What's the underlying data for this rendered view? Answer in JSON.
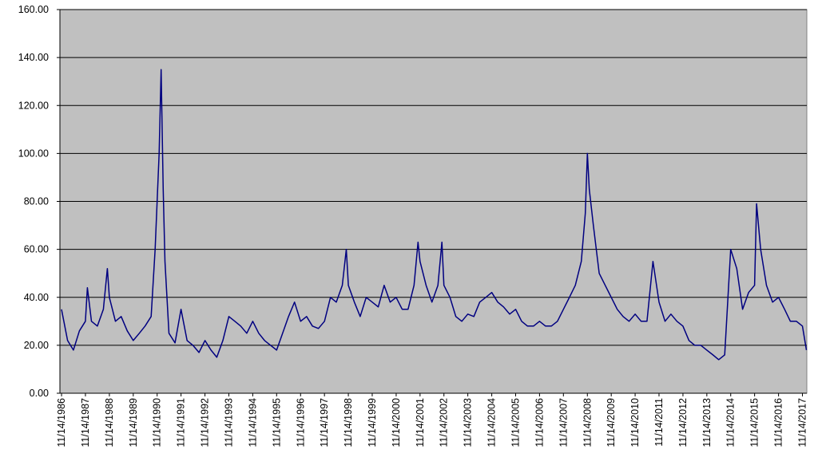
{
  "chart_data": {
    "type": "line",
    "x": [
      "1986-11-14",
      "1987-02-14",
      "1987-05-14",
      "1987-08-14",
      "1987-11-14",
      "1987-12-14",
      "1988-02-14",
      "1988-05-14",
      "1988-08-14",
      "1988-10-14",
      "1988-11-14",
      "1989-02-14",
      "1989-05-14",
      "1989-08-14",
      "1989-11-14",
      "1990-02-14",
      "1990-05-14",
      "1990-08-14",
      "1990-10-14",
      "1990-11-14",
      "1990-12-14",
      "1991-01-14",
      "1991-02-14",
      "1991-03-14",
      "1991-05-14",
      "1991-08-14",
      "1991-11-14",
      "1992-02-14",
      "1992-05-14",
      "1992-08-14",
      "1992-11-14",
      "1993-02-14",
      "1993-05-14",
      "1993-08-14",
      "1993-11-14",
      "1994-02-14",
      "1994-05-14",
      "1994-08-14",
      "1994-11-14",
      "1995-02-14",
      "1995-05-14",
      "1995-08-14",
      "1995-11-14",
      "1996-02-14",
      "1996-05-14",
      "1996-08-14",
      "1996-11-14",
      "1997-02-14",
      "1997-05-14",
      "1997-08-14",
      "1997-11-14",
      "1998-02-14",
      "1998-05-14",
      "1998-08-14",
      "1998-10-14",
      "1998-11-14",
      "1999-02-14",
      "1999-05-14",
      "1999-08-14",
      "1999-11-14",
      "2000-02-14",
      "2000-05-14",
      "2000-08-14",
      "2000-11-14",
      "2001-02-14",
      "2001-05-14",
      "2001-08-14",
      "2001-10-14",
      "2001-11-14",
      "2002-02-14",
      "2002-05-14",
      "2002-08-14",
      "2002-10-14",
      "2002-11-14",
      "2003-02-14",
      "2003-05-14",
      "2003-08-14",
      "2003-11-14",
      "2004-02-14",
      "2004-05-14",
      "2004-08-14",
      "2004-11-14",
      "2005-02-14",
      "2005-05-14",
      "2005-08-14",
      "2005-11-14",
      "2006-02-14",
      "2006-05-14",
      "2006-08-14",
      "2006-11-14",
      "2007-02-14",
      "2007-05-14",
      "2007-08-14",
      "2007-11-14",
      "2008-02-14",
      "2008-05-14",
      "2008-08-14",
      "2008-10-14",
      "2008-11-14",
      "2008-12-14",
      "2009-02-14",
      "2009-05-14",
      "2009-08-14",
      "2009-11-14",
      "2010-02-14",
      "2010-05-14",
      "2010-08-14",
      "2010-11-14",
      "2011-02-14",
      "2011-05-14",
      "2011-08-14",
      "2011-11-14",
      "2012-02-14",
      "2012-05-14",
      "2012-08-14",
      "2012-11-14",
      "2013-02-14",
      "2013-05-14",
      "2013-08-14",
      "2013-11-14",
      "2014-02-14",
      "2014-05-14",
      "2014-08-14",
      "2014-11-14",
      "2015-02-14",
      "2015-05-14",
      "2015-08-14",
      "2015-11-14",
      "2015-12-14",
      "2016-02-14",
      "2016-05-14",
      "2016-08-14",
      "2016-11-14",
      "2017-02-14",
      "2017-05-14",
      "2017-08-14",
      "2017-11-14",
      "2018-01-14"
    ],
    "series": [
      {
        "color": "#000080",
        "values": [
          35,
          22,
          18,
          26,
          30,
          44,
          30,
          28,
          35,
          52,
          40,
          30,
          32,
          26,
          22,
          25,
          28,
          32,
          60,
          80,
          100,
          135,
          85,
          55,
          25,
          21,
          35,
          22,
          20,
          17,
          22,
          18,
          15,
          22,
          32,
          30,
          28,
          25,
          30,
          25,
          22,
          20,
          18,
          25,
          32,
          38,
          30,
          32,
          28,
          27,
          30,
          40,
          38,
          45,
          60,
          45,
          38,
          32,
          40,
          38,
          36,
          45,
          38,
          40,
          35,
          35,
          45,
          63,
          55,
          45,
          38,
          45,
          63,
          45,
          40,
          32,
          30,
          33,
          32,
          38,
          40,
          42,
          38,
          36,
          33,
          35,
          30,
          28,
          28,
          30,
          28,
          28,
          30,
          35,
          40,
          45,
          55,
          75,
          100,
          85,
          70,
          50,
          45,
          40,
          35,
          32,
          30,
          33,
          30,
          30,
          55,
          38,
          30,
          33,
          30,
          28,
          22,
          20,
          20,
          18,
          16,
          14,
          16,
          60,
          52,
          35,
          42,
          45,
          79,
          60,
          45,
          38,
          40,
          35,
          30,
          30,
          28,
          18
        ]
      }
    ],
    "xlim": [
      "1986-10-20",
      "2018-01-20"
    ],
    "xticks": [
      {
        "value": "1986-11-14",
        "label": "11/14/1986"
      },
      {
        "value": "1987-11-14",
        "label": "11/14/1987"
      },
      {
        "value": "1988-11-14",
        "label": "11/14/1988"
      },
      {
        "value": "1989-11-14",
        "label": "11/14/1989"
      },
      {
        "value": "1990-11-14",
        "label": "11/14/1990"
      },
      {
        "value": "1991-11-14",
        "label": "11/14/1991"
      },
      {
        "value": "1992-11-14",
        "label": "11/14/1992"
      },
      {
        "value": "1993-11-14",
        "label": "11/14/1993"
      },
      {
        "value": "1994-11-14",
        "label": "11/14/1994"
      },
      {
        "value": "1995-11-14",
        "label": "11/14/1995"
      },
      {
        "value": "1996-11-14",
        "label": "11/14/1996"
      },
      {
        "value": "1997-11-14",
        "label": "11/14/1997"
      },
      {
        "value": "1998-11-14",
        "label": "11/14/1998"
      },
      {
        "value": "1999-11-14",
        "label": "11/14/1999"
      },
      {
        "value": "2000-11-14",
        "label": "11/14/2000"
      },
      {
        "value": "2001-11-14",
        "label": "11/14/2001"
      },
      {
        "value": "2002-11-14",
        "label": "11/14/2002"
      },
      {
        "value": "2003-11-14",
        "label": "11/14/2003"
      },
      {
        "value": "2004-11-14",
        "label": "11/14/2004"
      },
      {
        "value": "2005-11-14",
        "label": "11/14/2005"
      },
      {
        "value": "2006-11-14",
        "label": "11/14/2006"
      },
      {
        "value": "2007-11-14",
        "label": "11/14/2007"
      },
      {
        "value": "2008-11-14",
        "label": "11/14/2008"
      },
      {
        "value": "2009-11-14",
        "label": "11/14/2009"
      },
      {
        "value": "2010-11-14",
        "label": "11/14/2010"
      },
      {
        "value": "2011-11-14",
        "label": "11/14/2011"
      },
      {
        "value": "2012-11-14",
        "label": "11/14/2012"
      },
      {
        "value": "2013-11-14",
        "label": "11/14/2013"
      },
      {
        "value": "2014-11-14",
        "label": "11/14/2014"
      },
      {
        "value": "2015-11-14",
        "label": "11/14/2015"
      },
      {
        "value": "2016-11-14",
        "label": "11/14/2016"
      },
      {
        "value": "2017-11-14",
        "label": "11/14/2017"
      }
    ],
    "ylim": [
      0,
      160
    ],
    "yticks": [
      {
        "value": 0,
        "label": "0.00"
      },
      {
        "value": 20,
        "label": "20.00"
      },
      {
        "value": 40,
        "label": "40.00"
      },
      {
        "value": 60,
        "label": "60.00"
      },
      {
        "value": 80,
        "label": "80.00"
      },
      {
        "value": 100,
        "label": "100.00"
      },
      {
        "value": 120,
        "label": "120.00"
      },
      {
        "value": 140,
        "label": "140.00"
      },
      {
        "value": 160,
        "label": "160.00"
      }
    ],
    "grid": true,
    "background": "#c0c0c0"
  }
}
